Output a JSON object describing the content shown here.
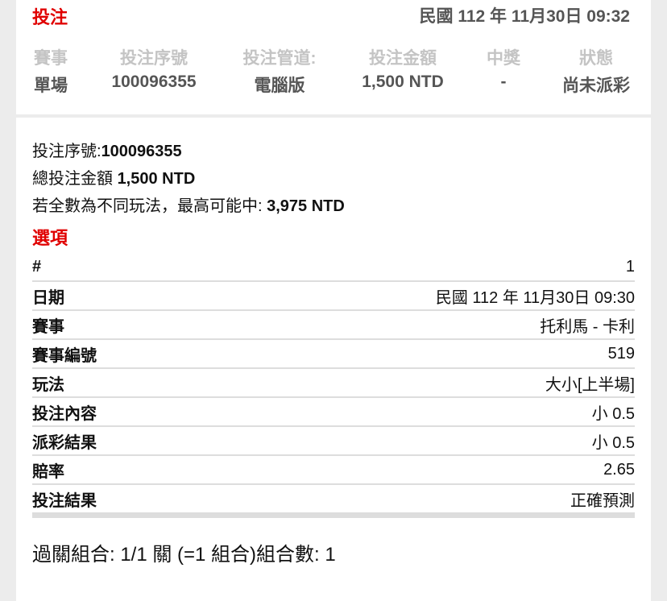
{
  "header": {
    "title": "投注",
    "datetime": "民國 112 年 11月30日 09:32"
  },
  "summary": {
    "columns": [
      {
        "label": "賽事",
        "value": "單場"
      },
      {
        "label": "投注序號",
        "value": "100096355"
      },
      {
        "label": "投注管道:",
        "value": "電腦版"
      },
      {
        "label": "投注金額",
        "value": "1,500 NTD"
      },
      {
        "label": "中獎",
        "value": "-"
      },
      {
        "label": "狀態",
        "value": "尚未派彩"
      }
    ]
  },
  "detail": {
    "serial_label": "投注序號:",
    "serial": "100096355",
    "total_label": "總投注金額 ",
    "total": "1,500 NTD",
    "max_label": "若全數為不同玩法，最高可能中: ",
    "max": "3,975 NTD",
    "options_title": "選項",
    "rows": [
      {
        "k": "#",
        "v": "1"
      },
      {
        "k": "日期",
        "v": "民國 112 年 11月30日 09:30"
      },
      {
        "k": "賽事",
        "v": "托利馬 - 卡利"
      },
      {
        "k": "賽事編號",
        "v": "519"
      },
      {
        "k": "玩法",
        "v": "大小[上半場]"
      },
      {
        "k": "投注內容",
        "v": "小 0.5"
      },
      {
        "k": "派彩結果",
        "v": "小 0.5"
      },
      {
        "k": "賠率",
        "v": "2.65"
      },
      {
        "k": "投注結果",
        "v": "正確預測"
      }
    ],
    "combo": "過關組合: 1/1 關 (=1 組合)組合數: 1"
  }
}
